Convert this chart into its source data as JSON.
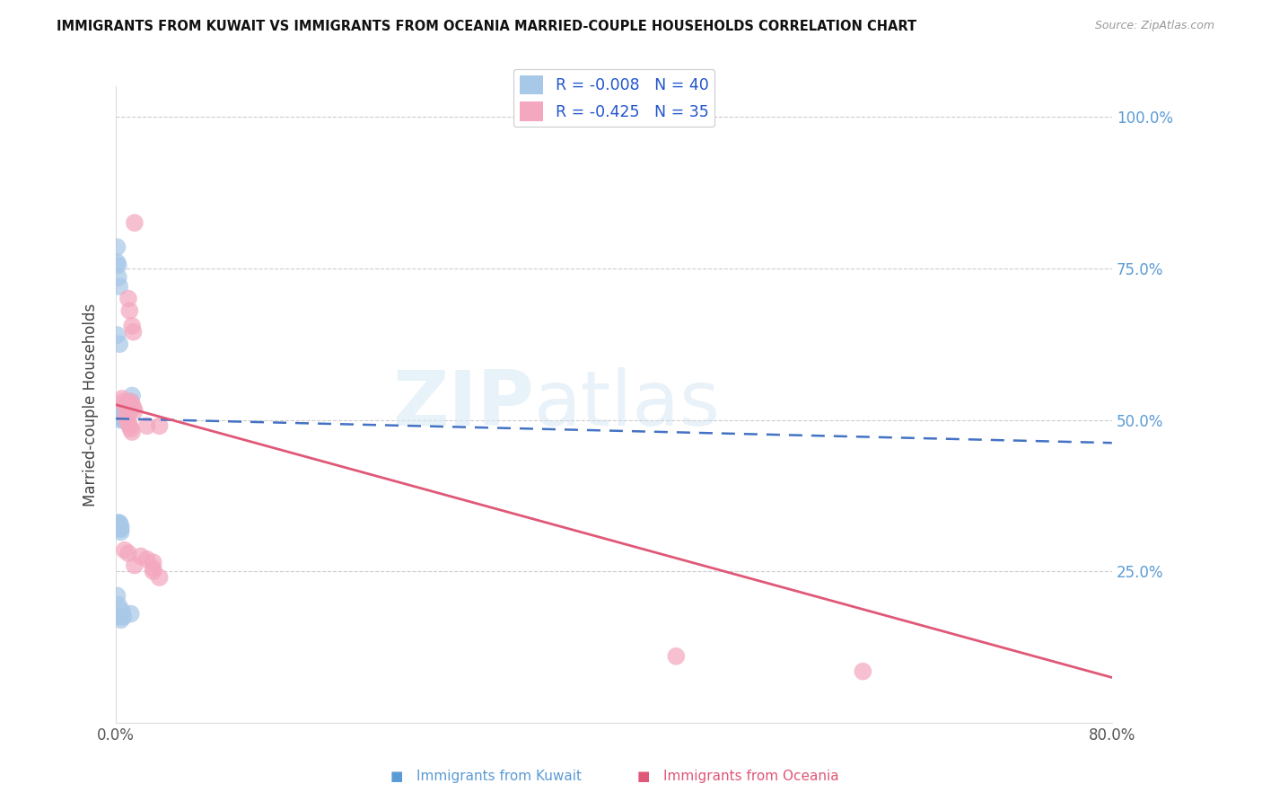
{
  "title": "IMMIGRANTS FROM KUWAIT VS IMMIGRANTS FROM OCEANIA MARRIED-COUPLE HOUSEHOLDS CORRELATION CHART",
  "source": "Source: ZipAtlas.com",
  "ylabel": "Married-couple Households",
  "color_kuwait": "#a8c8e8",
  "color_oceania": "#f4a8c0",
  "line_color_kuwait": "#4472c4",
  "line_color_oceania": "#e05878",
  "watermark_zip": "ZIP",
  "watermark_atlas": "atlas",
  "kuwait_line_x0": 0.0,
  "kuwait_line_y0": 0.502,
  "kuwait_line_x1": 0.8,
  "kuwait_line_y1": 0.462,
  "oceania_line_x0": 0.0,
  "oceania_line_y0": 0.525,
  "oceania_line_x1": 0.8,
  "oceania_line_y1": 0.075,
  "kuwait_points": [
    [
      0.001,
      0.785
    ],
    [
      0.001,
      0.76
    ],
    [
      0.002,
      0.755
    ],
    [
      0.002,
      0.735
    ],
    [
      0.003,
      0.72
    ],
    [
      0.001,
      0.64
    ],
    [
      0.003,
      0.625
    ],
    [
      0.001,
      0.52
    ],
    [
      0.002,
      0.51
    ],
    [
      0.002,
      0.505
    ],
    [
      0.003,
      0.51
    ],
    [
      0.003,
      0.505
    ],
    [
      0.004,
      0.515
    ],
    [
      0.004,
      0.505
    ],
    [
      0.004,
      0.5
    ],
    [
      0.005,
      0.51
    ],
    [
      0.005,
      0.5
    ],
    [
      0.006,
      0.51
    ],
    [
      0.007,
      0.52
    ],
    [
      0.008,
      0.515
    ],
    [
      0.009,
      0.515
    ],
    [
      0.01,
      0.51
    ],
    [
      0.012,
      0.53
    ],
    [
      0.013,
      0.54
    ],
    [
      0.001,
      0.33
    ],
    [
      0.002,
      0.33
    ],
    [
      0.002,
      0.325
    ],
    [
      0.003,
      0.33
    ],
    [
      0.003,
      0.325
    ],
    [
      0.003,
      0.32
    ],
    [
      0.004,
      0.325
    ],
    [
      0.004,
      0.32
    ],
    [
      0.004,
      0.315
    ],
    [
      0.001,
      0.21
    ],
    [
      0.002,
      0.195
    ],
    [
      0.003,
      0.175
    ],
    [
      0.004,
      0.17
    ],
    [
      0.005,
      0.185
    ],
    [
      0.006,
      0.175
    ],
    [
      0.012,
      0.18
    ]
  ],
  "oceania_points": [
    [
      0.015,
      0.825
    ],
    [
      0.01,
      0.7
    ],
    [
      0.011,
      0.68
    ],
    [
      0.013,
      0.655
    ],
    [
      0.014,
      0.645
    ],
    [
      0.005,
      0.535
    ],
    [
      0.006,
      0.53
    ],
    [
      0.007,
      0.525
    ],
    [
      0.008,
      0.525
    ],
    [
      0.009,
      0.52
    ],
    [
      0.01,
      0.525
    ],
    [
      0.011,
      0.525
    ],
    [
      0.012,
      0.53
    ],
    [
      0.013,
      0.525
    ],
    [
      0.014,
      0.52
    ],
    [
      0.015,
      0.515
    ],
    [
      0.008,
      0.505
    ],
    [
      0.009,
      0.5
    ],
    [
      0.01,
      0.495
    ],
    [
      0.011,
      0.49
    ],
    [
      0.012,
      0.485
    ],
    [
      0.013,
      0.48
    ],
    [
      0.025,
      0.49
    ],
    [
      0.007,
      0.285
    ],
    [
      0.01,
      0.28
    ],
    [
      0.02,
      0.275
    ],
    [
      0.025,
      0.27
    ],
    [
      0.015,
      0.26
    ],
    [
      0.03,
      0.265
    ],
    [
      0.03,
      0.255
    ],
    [
      0.03,
      0.25
    ],
    [
      0.035,
      0.24
    ],
    [
      0.45,
      0.11
    ],
    [
      0.6,
      0.085
    ],
    [
      0.035,
      0.49
    ]
  ],
  "xlim": [
    0.0,
    0.8
  ],
  "ylim": [
    0.0,
    1.05
  ],
  "xtick_positions": [
    0.0,
    0.1,
    0.2,
    0.3,
    0.4,
    0.5,
    0.6,
    0.7,
    0.8
  ],
  "ytick_positions": [
    0.0,
    0.25,
    0.5,
    0.75,
    1.0
  ],
  "ytick_labels_right": [
    "",
    "25.0%",
    "50.0%",
    "75.0%",
    "100.0%"
  ],
  "grid_color": "#cccccc",
  "legend_entries": [
    "R = -0.008   N = 40",
    "R = -0.425   N = 35"
  ],
  "bottom_labels": [
    "Immigrants from Kuwait",
    "Immigrants from Oceania"
  ],
  "bottom_colors": [
    "#5b9bd5",
    "#e05878"
  ]
}
